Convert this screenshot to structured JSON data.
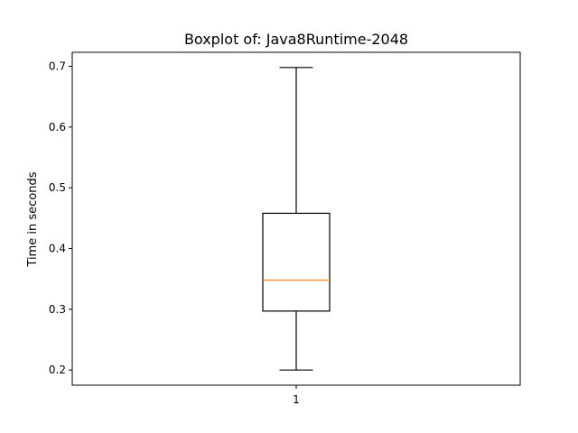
{
  "chart_data": {
    "type": "boxplot",
    "title": "Boxplot of: Java8Runtime-2048",
    "xlabel": "",
    "ylabel": "Time in seconds",
    "categories": [
      "1"
    ],
    "boxes": [
      {
        "category": "1",
        "whisker_low": 0.2,
        "q1": 0.297,
        "median": 0.348,
        "q3": 0.458,
        "whisker_high": 0.698
      }
    ],
    "ylim": [
      0.175,
      0.723
    ],
    "yticks": [
      0.2,
      0.3,
      0.4,
      0.5,
      0.6,
      0.7
    ],
    "ytick_labels": [
      "0.2",
      "0.3",
      "0.4",
      "0.5",
      "0.6",
      "0.7"
    ],
    "grid": false,
    "colors": {
      "box": "#000000",
      "whisker": "#000000",
      "median": "#ff7f0e",
      "axes": "#000000"
    }
  }
}
